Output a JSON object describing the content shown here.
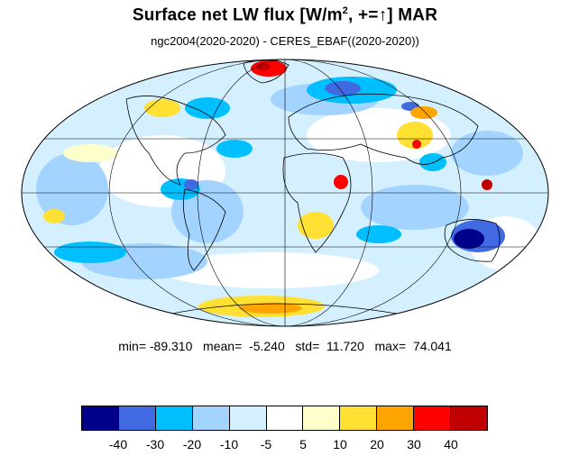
{
  "title": {
    "main": "Surface net LW flux [W/m",
    "superscript": "2",
    "suffix": ", +=",
    "arrow": "↑",
    "end": "]  MAR"
  },
  "subtitle": "ngc2004(2020-2020) - CERES_EBAF((2020-2020))",
  "stats": {
    "min_label": "min=",
    "min": "-89.310",
    "mean_label": "mean=",
    "mean": "-5.240",
    "std_label": "std=",
    "std": "11.720",
    "max_label": "max=",
    "max": "74.041"
  },
  "colorbar": {
    "colors": [
      "#00008b",
      "#4169e1",
      "#00bfff",
      "#a3d3ff",
      "#d4f0ff",
      "#ffffff",
      "#ffffcc",
      "#ffe033",
      "#ffa500",
      "#ff0000",
      "#c00000"
    ],
    "labels": [
      "-40",
      "-30",
      "-20",
      "-10",
      "-5",
      "5",
      "10",
      "20",
      "30",
      "40"
    ]
  },
  "map": {
    "projection": "Mollweide",
    "background": "#d4f0ff",
    "anomaly_colors": {
      "pale_blue": "#a3d3ff",
      "blue": "#00bfff",
      "royal_blue": "#4169e1",
      "dark_blue": "#00008b",
      "pale_yellow": "#ffffcc",
      "yellow": "#ffe033",
      "orange": "#ffa500",
      "red": "#ff0000",
      "dark_red": "#c00000"
    }
  }
}
